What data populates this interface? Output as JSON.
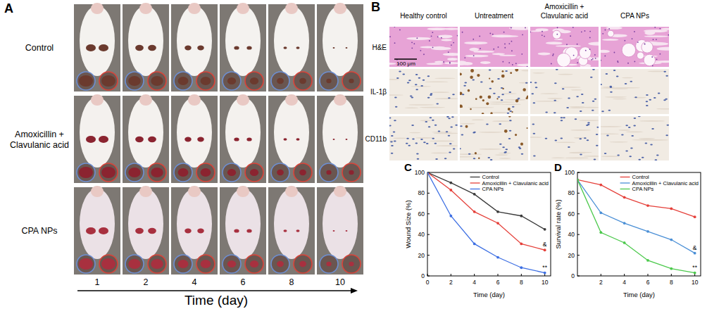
{
  "panels": {
    "A": {
      "label": "A",
      "rows": [
        [
          "Control"
        ],
        [
          "Amoxicillin +",
          "Clavulanic acid"
        ],
        [
          "CPA NPs"
        ]
      ],
      "days": [
        1,
        2,
        4,
        6,
        8,
        10
      ],
      "axis_label": "Time (day)"
    },
    "B": {
      "label": "B",
      "columns": [
        [
          "Healthy control"
        ],
        [
          "Untreatment"
        ],
        [
          "Amoxicillin +",
          "Clavulanic acid"
        ],
        [
          "CPA NPs"
        ]
      ],
      "rows": [
        "H&E",
        "IL-1β",
        "CD11b"
      ],
      "scale_bar": "100 μm"
    }
  },
  "chart_data": [
    {
      "type": "line",
      "title": "C",
      "x_label": "Time (day)",
      "y_label": "Wound Size (%)",
      "x": [
        0,
        2,
        4,
        6,
        8,
        10
      ],
      "xlim": [
        0,
        10.5
      ],
      "xticks": [
        0,
        2,
        4,
        6,
        8,
        10
      ],
      "ylim": [
        0,
        100
      ],
      "yticks": [
        0,
        20,
        40,
        60,
        80,
        100
      ],
      "legend": "upper right",
      "marker": "circle",
      "series": [
        {
          "name": "Control",
          "color": "#3a3a3a",
          "values": [
            100,
            90,
            79,
            62,
            58,
            45
          ]
        },
        {
          "name": "Amoxicillin + Clavulanic acid",
          "color": "#e5403a",
          "values": [
            100,
            83,
            62,
            51,
            31,
            25
          ],
          "annotation": "&"
        },
        {
          "name": "CPA NPs",
          "color": "#3d6fe3",
          "values": [
            100,
            58,
            31,
            18,
            8,
            3
          ],
          "annotation": "**"
        }
      ]
    },
    {
      "type": "line",
      "title": "D",
      "x_label": "Time (day)",
      "y_label": "Survival rate (%)",
      "x": [
        0,
        2,
        4,
        6,
        8,
        10
      ],
      "xlim": [
        0,
        10.5
      ],
      "xticks": [
        2,
        4,
        6,
        8,
        10
      ],
      "ylim": [
        0,
        100
      ],
      "yticks": [
        0,
        20,
        40,
        60,
        80,
        100
      ],
      "legend": "upper right",
      "marker": "circle",
      "series": [
        {
          "name": "Control",
          "color": "#e5403a",
          "values": [
            93,
            88,
            76,
            68,
            65,
            57
          ]
        },
        {
          "name": "Amoxicillin + Clavulanic acid",
          "color": "#4a8fd6",
          "values": [
            93,
            61,
            51,
            43,
            35,
            22
          ],
          "annotation": "&"
        },
        {
          "name": "CPA NPs",
          "color": "#4cc94c",
          "values": [
            93,
            42,
            32,
            15,
            7,
            3
          ],
          "annotation": "**"
        }
      ]
    }
  ]
}
